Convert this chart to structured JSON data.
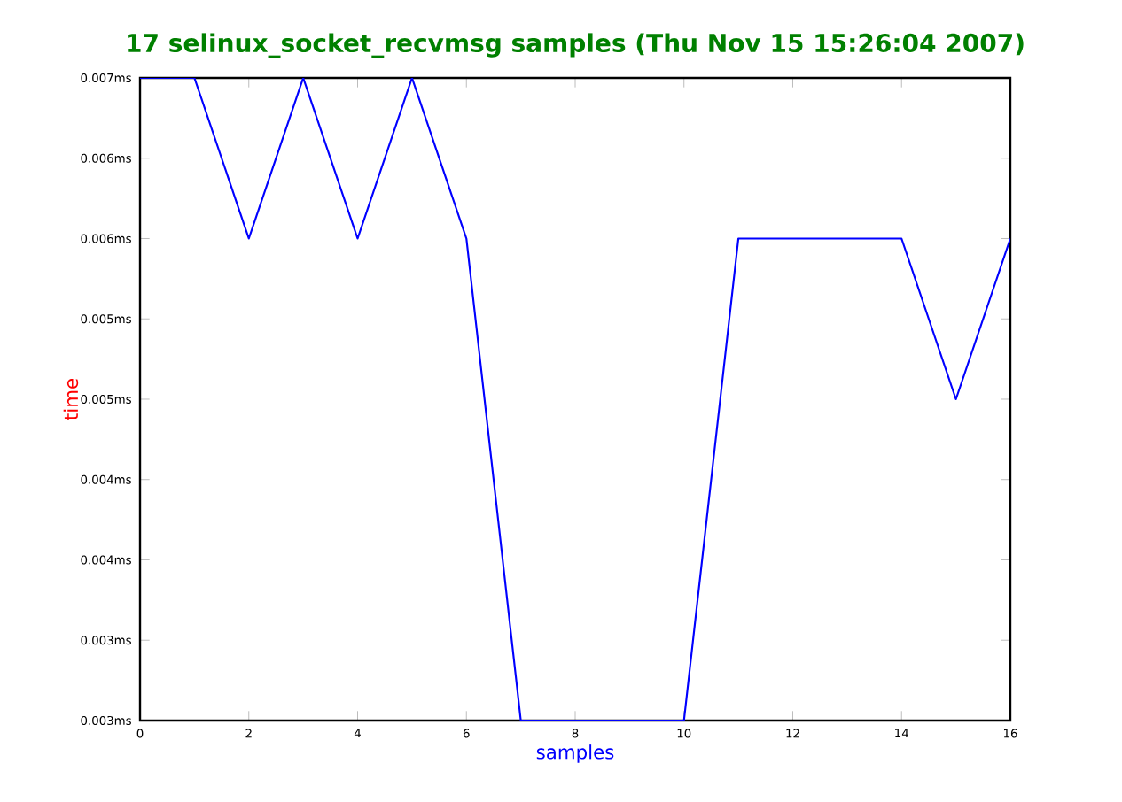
{
  "chart_data": {
    "type": "line",
    "title": "17 selinux_socket_recvmsg samples (Thu Nov 15 15:26:04 2007)",
    "xlabel": "samples",
    "ylabel": "time",
    "x": [
      0,
      1,
      2,
      3,
      4,
      5,
      6,
      7,
      8,
      9,
      10,
      11,
      12,
      13,
      14,
      15,
      16
    ],
    "series": [
      {
        "color": "#0000ff",
        "values": [
          0.007,
          0.007,
          0.006,
          0.007,
          0.006,
          0.007,
          0.006,
          0.003,
          0.003,
          0.003,
          0.003,
          0.006,
          0.006,
          0.006,
          0.006,
          0.005,
          0.006
        ]
      }
    ],
    "xlim": [
      0,
      16
    ],
    "xticks": [
      0,
      2,
      4,
      6,
      8,
      10,
      12,
      14,
      16
    ],
    "ylim": [
      0.003,
      0.007
    ],
    "yticks": [
      {
        "value": 0.003,
        "label": "0.003ms"
      },
      {
        "value": 0.0035,
        "label": "0.003ms"
      },
      {
        "value": 0.004,
        "label": "0.004ms"
      },
      {
        "value": 0.0045,
        "label": "0.004ms"
      },
      {
        "value": 0.005,
        "label": "0.005ms"
      },
      {
        "value": 0.0055,
        "label": "0.005ms"
      },
      {
        "value": 0.006,
        "label": "0.006ms"
      },
      {
        "value": 0.0065,
        "label": "0.006ms"
      },
      {
        "value": 0.007,
        "label": "0.007ms"
      }
    ],
    "grid": false,
    "marker": "none",
    "line_style": "solid"
  }
}
